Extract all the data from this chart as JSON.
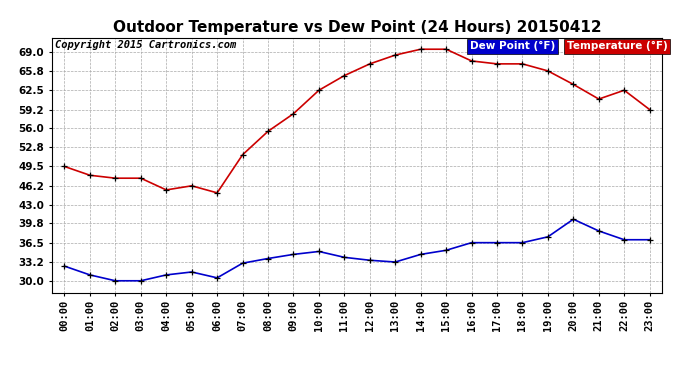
{
  "title": "Outdoor Temperature vs Dew Point (24 Hours) 20150412",
  "copyright": "Copyright 2015 Cartronics.com",
  "hours": [
    "00:00",
    "01:00",
    "02:00",
    "03:00",
    "04:00",
    "05:00",
    "06:00",
    "07:00",
    "08:00",
    "09:00",
    "10:00",
    "11:00",
    "12:00",
    "13:00",
    "14:00",
    "15:00",
    "16:00",
    "17:00",
    "18:00",
    "19:00",
    "20:00",
    "21:00",
    "22:00",
    "23:00"
  ],
  "temperature": [
    49.5,
    48.0,
    47.5,
    47.5,
    45.5,
    46.2,
    45.0,
    51.5,
    55.5,
    58.5,
    62.5,
    65.0,
    67.0,
    68.5,
    69.5,
    69.5,
    67.5,
    67.0,
    67.0,
    65.8,
    63.5,
    61.0,
    62.5,
    59.2
  ],
  "dew_point": [
    32.5,
    31.0,
    30.0,
    30.0,
    31.0,
    31.5,
    30.5,
    33.0,
    33.8,
    34.5,
    35.0,
    34.0,
    33.5,
    33.2,
    34.5,
    35.2,
    36.5,
    36.5,
    36.5,
    37.5,
    40.5,
    38.5,
    37.0,
    37.0
  ],
  "temp_color": "#cc0000",
  "dew_color": "#0000cc",
  "marker_color": "#000000",
  "bg_color": "#ffffff",
  "grid_color": "#aaaaaa",
  "ylim": [
    28.0,
    71.5
  ],
  "yticks": [
    30.0,
    33.2,
    36.5,
    39.8,
    43.0,
    46.2,
    49.5,
    52.8,
    56.0,
    59.2,
    62.5,
    65.8,
    69.0
  ],
  "legend_dew_bg": "#0000cc",
  "legend_temp_bg": "#cc0000",
  "legend_text_color": "#ffffff",
  "title_fontsize": 11,
  "axis_fontsize": 7.5,
  "copyright_fontsize": 7.5
}
